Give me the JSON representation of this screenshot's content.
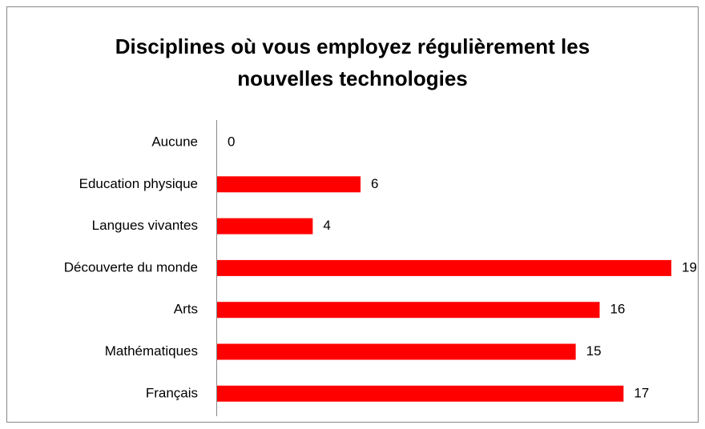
{
  "chart_data": {
    "type": "bar",
    "orientation": "horizontal",
    "title": "Disciplines où vous employez régulièrement les nouvelles technologies",
    "categories": [
      "Aucune",
      "Education physique",
      "Langues vivantes",
      "Découverte du monde",
      "Arts",
      "Mathématiques",
      "Français"
    ],
    "values": [
      0,
      6,
      4,
      19,
      16,
      15,
      17
    ],
    "color": "#ff0000"
  }
}
